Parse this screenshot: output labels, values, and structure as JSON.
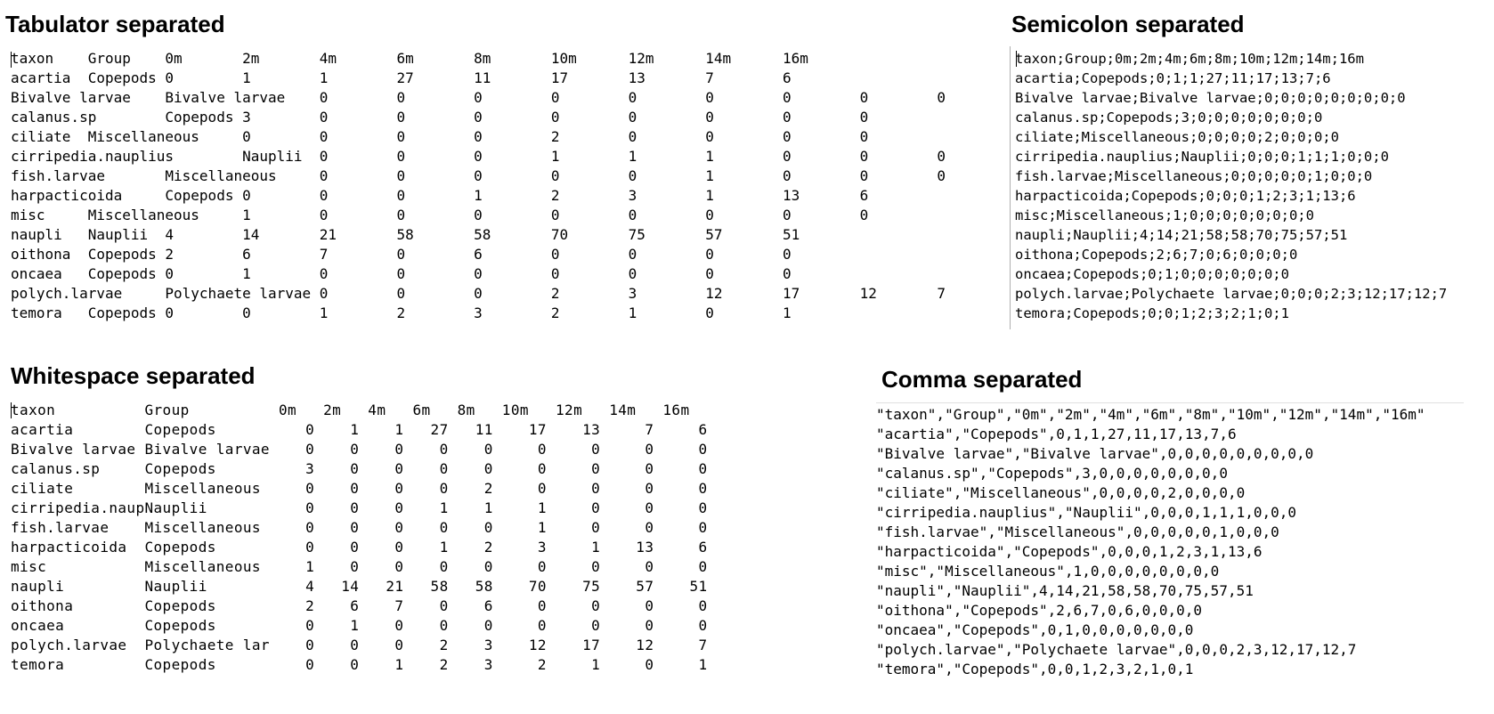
{
  "tab_panel": {
    "title": "Tabulator separated",
    "lines": [
      "taxon\tGroup\t0m\t2m\t4m\t6m\t8m\t10m\t12m\t14m\t16m",
      "acartia\tCopepods\t0\t1\t1\t27\t11\t17\t13\t7\t6",
      "Bivalve larvae\tBivalve larvae\t0\t0\t0\t0\t0\t0\t0\t0\t0",
      "calanus.sp\tCopepods\t3\t0\t0\t0\t0\t0\t0\t0\t0",
      "ciliate\tMiscellaneous\t0\t0\t0\t0\t2\t0\t0\t0\t0",
      "cirripedia.nauplius\tNauplii\t0\t0\t0\t1\t1\t1\t0\t0\t0",
      "fish.larvae\tMiscellaneous\t0\t0\t0\t0\t0\t1\t0\t0\t0",
      "harpacticoida\tCopepods\t0\t0\t0\t1\t2\t3\t1\t13\t6",
      "misc\tMiscellaneous\t1\t0\t0\t0\t0\t0\t0\t0\t0",
      "naupli\tNauplii\t4\t14\t21\t58\t58\t70\t75\t57\t51",
      "oithona\tCopepods\t2\t6\t7\t0\t6\t0\t0\t0\t0",
      "oncaea\tCopepods\t0\t1\t0\t0\t0\t0\t0\t0\t0",
      "polych.larvae\tPolychaete larvae\t0\t0\t0\t2\t3\t12\t17\t12\t7",
      "temora\tCopepods\t0\t0\t1\t2\t3\t2\t1\t0\t1"
    ]
  },
  "semicolon_panel": {
    "title": "Semicolon separated",
    "lines": [
      "taxon;Group;0m;2m;4m;6m;8m;10m;12m;14m;16m",
      "acartia;Copepods;0;1;1;27;11;17;13;7;6",
      "Bivalve larvae;Bivalve larvae;0;0;0;0;0;0;0;0;0",
      "calanus.sp;Copepods;3;0;0;0;0;0;0;0;0",
      "ciliate;Miscellaneous;0;0;0;0;2;0;0;0;0",
      "cirripedia.nauplius;Nauplii;0;0;0;1;1;1;0;0;0",
      "fish.larvae;Miscellaneous;0;0;0;0;0;1;0;0;0",
      "harpacticoida;Copepods;0;0;0;1;2;3;1;13;6",
      "misc;Miscellaneous;1;0;0;0;0;0;0;0;0",
      "naupli;Nauplii;4;14;21;58;58;70;75;57;51",
      "oithona;Copepods;2;6;7;0;6;0;0;0;0",
      "oncaea;Copepods;0;1;0;0;0;0;0;0;0",
      "polych.larvae;Polychaete larvae;0;0;0;2;3;12;17;12;7",
      "temora;Copepods;0;0;1;2;3;2;1;0;1"
    ]
  },
  "whitespace_panel": {
    "title": "Whitespace separated",
    "lines": [
      "taxon          Group          0m   2m   4m   6m   8m   10m   12m   14m   16m",
      "acartia        Copepods          0    1    1   27   11    17    13     7     6",
      "Bivalve larvae Bivalve larvae    0    0    0    0    0     0     0     0     0",
      "calanus.sp     Copepods          3    0    0    0    0     0     0     0     0",
      "ciliate        Miscellaneous     0    0    0    0    2     0     0     0     0",
      "cirripedia.naupNauplii           0    0    0    1    1     1     0     0     0",
      "fish.larvae    Miscellaneous     0    0    0    0    0     1     0     0     0",
      "harpacticoida  Copepods          0    0    0    1    2     3     1    13     6",
      "misc           Miscellaneous     1    0    0    0    0     0     0     0     0",
      "naupli         Nauplii           4   14   21   58   58    70    75    57    51",
      "oithona        Copepods          2    6    7    0    6     0     0     0     0",
      "oncaea         Copepods          0    1    0    0    0     0     0     0     0",
      "polych.larvae  Polychaete lar    0    0    0    2    3    12    17    12     7",
      "temora         Copepods          0    0    1    2    3     2     1     0     1"
    ]
  },
  "comma_panel": {
    "title": "Comma separated",
    "lines": [
      "\"taxon\",\"Group\",\"0m\",\"2m\",\"4m\",\"6m\",\"8m\",\"10m\",\"12m\",\"14m\",\"16m\"",
      "\"acartia\",\"Copepods\",0,1,1,27,11,17,13,7,6",
      "\"Bivalve larvae\",\"Bivalve larvae\",0,0,0,0,0,0,0,0,0",
      "\"calanus.sp\",\"Copepods\",3,0,0,0,0,0,0,0,0",
      "\"ciliate\",\"Miscellaneous\",0,0,0,0,2,0,0,0,0",
      "\"cirripedia.nauplius\",\"Nauplii\",0,0,0,1,1,1,0,0,0",
      "\"fish.larvae\",\"Miscellaneous\",0,0,0,0,0,1,0,0,0",
      "\"harpacticoida\",\"Copepods\",0,0,0,1,2,3,1,13,6",
      "\"misc\",\"Miscellaneous\",1,0,0,0,0,0,0,0,0",
      "\"naupli\",\"Nauplii\",4,14,21,58,58,70,75,57,51",
      "\"oithona\",\"Copepods\",2,6,7,0,6,0,0,0,0",
      "\"oncaea\",\"Copepods\",0,1,0,0,0,0,0,0,0",
      "\"polych.larvae\",\"Polychaete larvae\",0,0,0,2,3,12,17,12,7",
      "\"temora\",\"Copepods\",0,0,1,2,3,2,1,0,1"
    ]
  }
}
